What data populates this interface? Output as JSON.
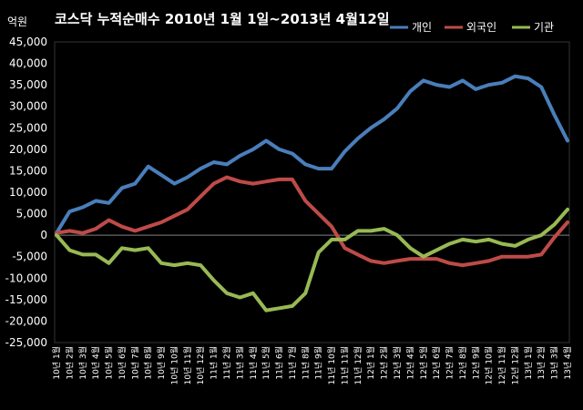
{
  "chart_data": {
    "type": "line",
    "title": "코스닥  누적순매수 2010년 1월 1일~2013년 4월12일",
    "unit_label": "억원",
    "ylim": [
      -25000,
      45000
    ],
    "y_ticks": [
      {
        "v": 45000,
        "label": "45,000"
      },
      {
        "v": 40000,
        "label": "40,000"
      },
      {
        "v": 35000,
        "label": "35,000"
      },
      {
        "v": 30000,
        "label": "30,000"
      },
      {
        "v": 25000,
        "label": "25,000"
      },
      {
        "v": 20000,
        "label": "20,000"
      },
      {
        "v": 15000,
        "label": "15,000"
      },
      {
        "v": 10000,
        "label": "10,000"
      },
      {
        "v": 5000,
        "label": "5,000"
      },
      {
        "v": 0,
        "label": "0"
      },
      {
        "v": -5000,
        "label": "-5,000"
      },
      {
        "v": -10000,
        "label": "-10,000"
      },
      {
        "v": -15000,
        "label": "-15,000"
      },
      {
        "v": -20000,
        "label": "-20,000"
      },
      {
        "v": -25000,
        "label": "-25,000"
      }
    ],
    "categories": [
      "10년 1월",
      "10년 2월",
      "10년 3월",
      "10년 4월",
      "10년 5월",
      "10년 6월",
      "10년 7월",
      "10년 8월",
      "10년 9월",
      "10년 10월",
      "10년 11월",
      "10년 12월",
      "11년 1월",
      "11년 2월",
      "11년 3월",
      "11년 4월",
      "11년 5월",
      "11년 6월",
      "11년 7월",
      "11년 8월",
      "11년 9월",
      "11년 10월",
      "11년 11월",
      "11년 12월",
      "12년 1월",
      "12년 2월",
      "12년 3월",
      "12년 4월",
      "12년 5월",
      "12년 6월",
      "12년 7월",
      "12년 8월",
      "12년 9월",
      "12년 10월",
      "12년 11월",
      "12년 12월",
      "13년 1월",
      "13년 2월",
      "13년 3월",
      "13년 4월"
    ],
    "series": [
      {
        "name": "개인",
        "color": "#4a7ebb",
        "values": [
          500,
          5500,
          6500,
          8000,
          7500,
          11000,
          12000,
          16000,
          14000,
          12000,
          13500,
          15500,
          17000,
          16500,
          18500,
          20000,
          22000,
          20000,
          19000,
          16500,
          15500,
          15500,
          19500,
          22500,
          25000,
          27000,
          29500,
          33500,
          36000,
          35000,
          34500,
          36000,
          34000,
          35000,
          35500,
          37000,
          36500,
          34500,
          28000,
          22000
        ]
      },
      {
        "name": "외국인",
        "color": "#be4b48",
        "values": [
          500,
          1000,
          500,
          1500,
          3500,
          2000,
          1000,
          2000,
          3000,
          4500,
          6000,
          9000,
          12000,
          13500,
          12500,
          12000,
          12500,
          13000,
          13000,
          8000,
          5000,
          2000,
          -3000,
          -4500,
          -6000,
          -6500,
          -6000,
          -5500,
          -5500,
          -5500,
          -6500,
          -7000,
          -6500,
          -6000,
          -5000,
          -5000,
          -5000,
          -4500,
          -500,
          3000
        ]
      },
      {
        "name": "기관",
        "color": "#98b954",
        "values": [
          0,
          -3500,
          -4500,
          -4500,
          -6500,
          -3000,
          -3500,
          -3000,
          -6500,
          -7000,
          -6500,
          -7000,
          -10500,
          -13500,
          -14500,
          -13500,
          -17500,
          -17000,
          -16500,
          -13500,
          -4000,
          -1000,
          -1000,
          1000,
          1000,
          1500,
          0,
          -3000,
          -5000,
          -3500,
          -2000,
          -1000,
          -1500,
          -1000,
          -2000,
          -2500,
          -1000,
          0,
          2500,
          6000
        ]
      }
    ],
    "legend_position": "top-right",
    "zero_line": true,
    "grid": false
  }
}
